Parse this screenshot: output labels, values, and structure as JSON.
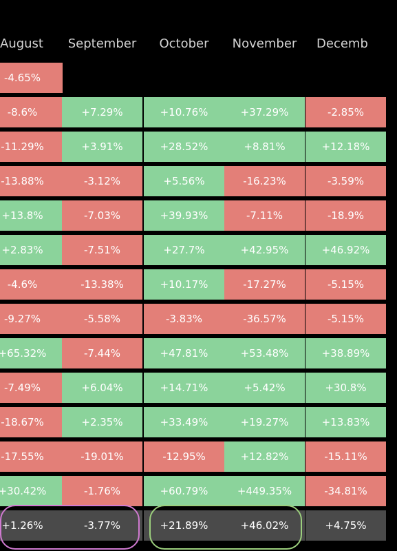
{
  "colors": {
    "positive": "#8bd39b",
    "negative": "#e37f78",
    "average_row": "#4a4a4a",
    "header_text": "#d4d4d4",
    "background": "#000000",
    "highlight_green": "#9ccf7d",
    "highlight_pink": "#d07ad1"
  },
  "chart_data": {
    "type": "table",
    "columns": [
      "August",
      "September",
      "October",
      "November",
      "Decemb"
    ],
    "rows": [
      [
        "-4.65%",
        null,
        null,
        null,
        null
      ],
      [
        "-8.6%",
        "+7.29%",
        "+10.76%",
        "+37.29%",
        "-2.85%"
      ],
      [
        "-11.29%",
        "+3.91%",
        "+28.52%",
        "+8.81%",
        "+12.18%"
      ],
      [
        "-13.88%",
        "-3.12%",
        "+5.56%",
        "-16.23%",
        "-3.59%"
      ],
      [
        "+13.8%",
        "-7.03%",
        "+39.93%",
        "-7.11%",
        "-18.9%"
      ],
      [
        "+2.83%",
        "-7.51%",
        "+27.7%",
        "+42.95%",
        "+46.92%"
      ],
      [
        "-4.6%",
        "-13.38%",
        "+10.17%",
        "-17.27%",
        "-5.15%"
      ],
      [
        "-9.27%",
        "-5.58%",
        "-3.83%",
        "-36.57%",
        "-5.15%"
      ],
      [
        "+65.32%",
        "-7.44%",
        "+47.81%",
        "+53.48%",
        "+38.89%"
      ],
      [
        "-7.49%",
        "+6.04%",
        "+14.71%",
        "+5.42%",
        "+30.8%"
      ],
      [
        "-18.67%",
        "+2.35%",
        "+33.49%",
        "+19.27%",
        "+13.83%"
      ],
      [
        "-17.55%",
        "-19.01%",
        "-12.95%",
        "+12.82%",
        "-15.11%"
      ],
      [
        "+30.42%",
        "-1.76%",
        "+60.79%",
        "+449.35%",
        "-34.81%"
      ]
    ],
    "average_row": [
      "+1.26%",
      "-3.77%",
      "+21.89%",
      "+46.02%",
      "+4.75%"
    ],
    "circled_columns": {
      "pink": [
        0,
        1
      ],
      "green": [
        2,
        3
      ]
    }
  }
}
